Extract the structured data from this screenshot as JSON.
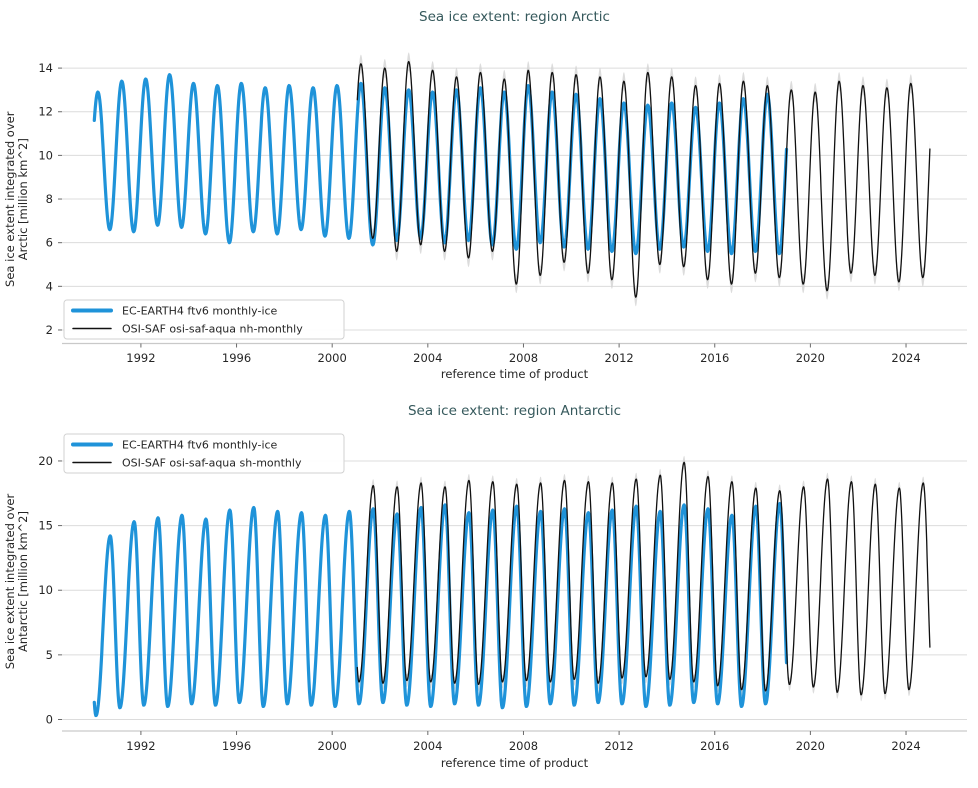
{
  "styles": {
    "title_color": "#36595c",
    "grid_color": "#dcdcdc",
    "spine_color": "#c9c9c9",
    "tick_mark_color": "#6a6a6a",
    "text_color": "#262626",
    "legend_border_color": "#d2d2d2",
    "legend_bg_color": "#ffffff",
    "background": "#ffffff",
    "accent_blue": "#1f93d9",
    "series_black": "#111111",
    "band_color": "#d3d3d3"
  },
  "chart_data": [
    {
      "type": "line",
      "region": "Arctic",
      "title": "Sea ice extent: region Arctic",
      "xlabel": "reference time of product",
      "ylabel": "Sea ice extent integrated over\nArctic [million km^2]",
      "xlim": [
        1988.7,
        2026.55
      ],
      "ylim": [
        1.38,
        14.6
      ],
      "xticks": [
        1992,
        1996,
        2000,
        2004,
        2008,
        2012,
        2016,
        2020,
        2024
      ],
      "yticks": [
        2,
        4,
        6,
        8,
        10,
        12,
        14
      ],
      "grid": "horizontal",
      "legend_position": "lower-left",
      "series": [
        {
          "name": "EC-EARTH4 ftv6 monthly-ice",
          "color": "#1f93d9",
          "line_width": 3.2,
          "legend_sample_width": 4,
          "start": 1990.05,
          "end": 2019.0,
          "max_month_frac": 0.2,
          "min_month_frac": 0.7,
          "start_year": 1990,
          "annual_max": [
            12.9,
            13.4,
            13.5,
            13.7,
            13.3,
            13.2,
            13.3,
            13.1,
            13.2,
            13.1,
            13.2,
            13.3,
            13.1,
            13.0,
            12.9,
            13.0,
            13.1,
            12.9,
            13.2,
            12.9,
            12.8,
            12.6,
            12.4,
            12.3,
            12.4,
            12.2,
            12.4,
            12.6,
            12.8,
            12.8
          ],
          "annual_min": [
            6.6,
            6.5,
            6.8,
            6.7,
            6.4,
            6.0,
            6.5,
            6.4,
            6.6,
            6.3,
            6.2,
            5.9,
            6.1,
            6.2,
            6.0,
            6.1,
            5.9,
            5.7,
            6.0,
            5.8,
            5.7,
            5.6,
            5.5,
            5.7,
            5.8,
            5.6,
            5.5,
            5.6,
            5.5,
            5.5
          ]
        },
        {
          "name": "OSI-SAF osi-saf-aqua nh-monthly",
          "color": "#111111",
          "line_width": 1.3,
          "legend_sample_width": 1.5,
          "uncertainty_band": 0.42,
          "band_color": "#d3d3d3",
          "start": 2001.05,
          "end": 2025.0,
          "max_month_frac": 0.2,
          "min_month_frac": 0.7,
          "start_year": 2001,
          "annual_max": [
            14.2,
            14.0,
            14.3,
            13.9,
            13.6,
            13.8,
            13.5,
            13.9,
            13.8,
            13.7,
            13.6,
            13.4,
            13.8,
            13.6,
            13.2,
            13.3,
            13.4,
            13.2,
            13.0,
            12.9,
            13.4,
            13.2,
            13.1,
            13.3,
            13.4
          ],
          "annual_min": [
            6.2,
            5.6,
            5.9,
            5.6,
            5.3,
            5.6,
            4.1,
            4.5,
            5.1,
            4.6,
            4.3,
            3.5,
            5.0,
            4.9,
            4.3,
            4.1,
            4.6,
            4.4,
            4.1,
            3.8,
            4.6,
            4.5,
            4.2,
            4.4,
            4.5
          ]
        }
      ]
    },
    {
      "type": "line",
      "region": "Antarctic",
      "title": "Sea ice extent: region Antarctic",
      "xlabel": "reference time of product",
      "ylabel": "Sea ice extent integrated over\nAntarctic [million km^2]",
      "xlim": [
        1988.7,
        2026.55
      ],
      "ylim": [
        -0.89,
        22.24
      ],
      "xticks": [
        1992,
        1996,
        2000,
        2004,
        2008,
        2012,
        2016,
        2020,
        2024
      ],
      "yticks": [
        0,
        5,
        10,
        15,
        20
      ],
      "grid": "horizontal",
      "legend_position": "upper-left",
      "series": [
        {
          "name": "EC-EARTH4 ftv6 monthly-ice",
          "color": "#1f93d9",
          "line_width": 3.2,
          "legend_sample_width": 4,
          "start": 1990.05,
          "end": 2019.0,
          "max_month_frac": 0.72,
          "min_month_frac": 0.12,
          "start_year": 1990,
          "annual_max": [
            14.2,
            15.3,
            15.6,
            15.8,
            15.5,
            16.2,
            16.4,
            16.1,
            16.0,
            15.8,
            16.1,
            16.3,
            15.9,
            16.4,
            16.6,
            16.0,
            16.2,
            16.5,
            16.1,
            16.3,
            16.0,
            16.2,
            16.5,
            16.1,
            16.6,
            16.3,
            15.8,
            16.5,
            16.7,
            16.5
          ],
          "annual_min": [
            0.3,
            0.9,
            1.1,
            1.0,
            1.2,
            1.1,
            1.3,
            1.0,
            1.2,
            1.1,
            1.0,
            1.2,
            1.3,
            1.1,
            1.0,
            1.2,
            1.1,
            0.9,
            1.0,
            1.2,
            1.1,
            1.3,
            1.2,
            1.0,
            1.1,
            1.3,
            1.2,
            1.0,
            1.2,
            1.2
          ]
        },
        {
          "name": "OSI-SAF osi-saf-aqua sh-monthly",
          "color": "#111111",
          "line_width": 1.3,
          "legend_sample_width": 1.5,
          "uncertainty_band": 0.5,
          "band_color": "#d3d3d3",
          "start": 2001.05,
          "end": 2025.0,
          "max_month_frac": 0.72,
          "min_month_frac": 0.12,
          "start_year": 2001,
          "annual_max": [
            18.1,
            18.0,
            18.3,
            18.0,
            18.5,
            18.4,
            18.2,
            18.3,
            18.5,
            18.4,
            18.3,
            18.6,
            18.9,
            19.9,
            18.8,
            18.4,
            17.9,
            17.7,
            18.0,
            18.6,
            18.4,
            18.2,
            17.9,
            18.3,
            18.3
          ],
          "annual_min": [
            2.9,
            2.8,
            3.0,
            2.9,
            2.8,
            2.7,
            2.9,
            3.0,
            2.9,
            3.1,
            2.8,
            3.2,
            3.3,
            3.1,
            2.9,
            2.6,
            2.3,
            2.2,
            2.7,
            2.5,
            2.1,
            1.9,
            2.0,
            2.3,
            2.3
          ]
        }
      ]
    }
  ]
}
